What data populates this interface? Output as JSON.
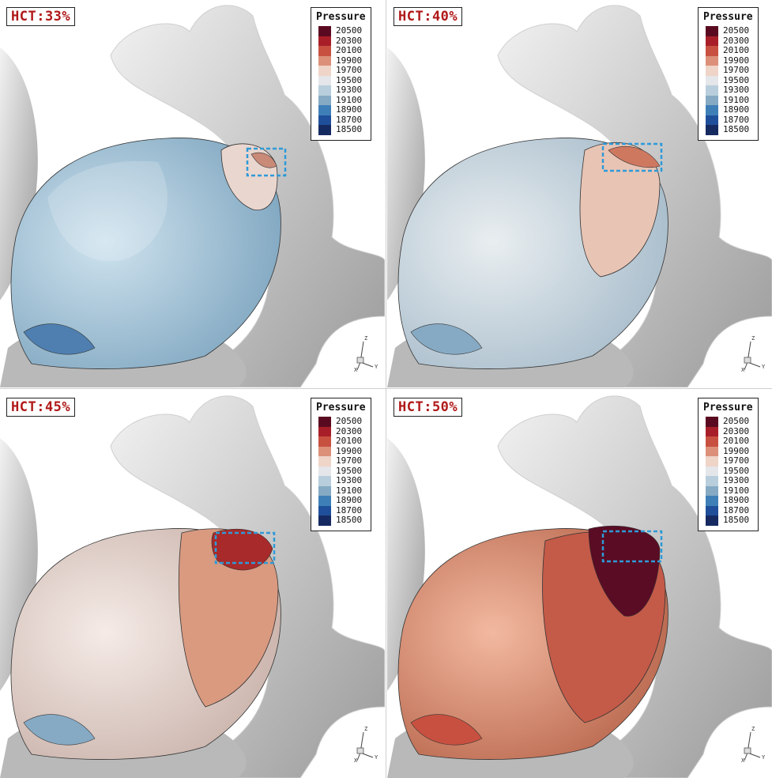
{
  "legend_title": "Pressure",
  "legend_levels": [
    {
      "value": "20500",
      "color": "#5a0a20"
    },
    {
      "value": "20300",
      "color": "#a81e28"
    },
    {
      "value": "20100",
      "color": "#c85040"
    },
    {
      "value": "19900",
      "color": "#dc907a"
    },
    {
      "value": "19700",
      "color": "#efd4c8"
    },
    {
      "value": "19500",
      "color": "#e4e6ea"
    },
    {
      "value": "19300",
      "color": "#b8cedc"
    },
    {
      "value": "19100",
      "color": "#86aac4"
    },
    {
      "value": "18900",
      "color": "#3f7fb8"
    },
    {
      "value": "18700",
      "color": "#1f4f9a"
    },
    {
      "value": "18500",
      "color": "#162a62"
    }
  ],
  "axis_labels": {
    "z": "Z",
    "x": "X",
    "y": "Y"
  },
  "panels": [
    {
      "label": "HCT:33%",
      "body_color": "#a9c6d8",
      "body_highlight": "#cfe3ee",
      "patch_color": "#e9d6cf",
      "spot_color": "#c98a78"
    },
    {
      "label": "HCT:40%",
      "body_color": "#c9d8e0",
      "body_highlight": "#e9eef0",
      "patch_color": "#e8c4b4",
      "spot_color": "#cf7860"
    },
    {
      "label": "HCT:45%",
      "body_color": "#ead8d2",
      "body_highlight": "#f5ebe7",
      "patch_color": "#d99a80",
      "spot_color": "#a82a2a"
    },
    {
      "label": "HCT:50%",
      "body_color": "#d88a6c",
      "body_highlight": "#f2b9a0",
      "patch_color": "#c45a48",
      "spot_color": "#5a0c24"
    }
  ]
}
